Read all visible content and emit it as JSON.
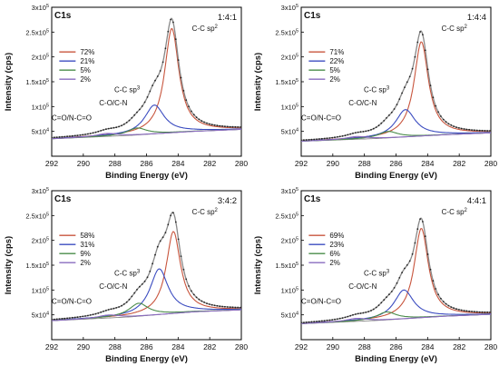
{
  "chart_data": [
    {
      "type": "line",
      "title": "C1s",
      "ratio": "1:4:1",
      "xlabel": "Binding Energy (eV)",
      "ylabel": "Intensity (cps)",
      "xlim": [
        292,
        280
      ],
      "ylim": [
        0,
        300000
      ],
      "x_ticks": [
        292,
        290,
        288,
        286,
        284,
        282,
        280
      ],
      "y_ticks": [
        {
          "value": 50000,
          "mant": "5x10",
          "exp": "4"
        },
        {
          "value": 100000,
          "mant": "1x10",
          "exp": "5"
        },
        {
          "value": 150000,
          "mant": "1.5x10",
          "exp": "5"
        },
        {
          "value": 200000,
          "mant": "2x10",
          "exp": "5"
        },
        {
          "value": 250000,
          "mant": "2.5x10",
          "exp": "5"
        },
        {
          "value": 300000,
          "mant": "3x10",
          "exp": "5"
        }
      ],
      "legend": [
        "72%",
        "21%",
        "5%",
        "2%"
      ],
      "background": [
        {
          "x": 292,
          "y": 35000
        },
        {
          "x": 287,
          "y": 42000
        },
        {
          "x": 283,
          "y": 50000
        },
        {
          "x": 280,
          "y": 54000
        }
      ],
      "series": [
        {
          "label": "C-C sp2",
          "color": "#c8553d",
          "center": 284.4,
          "height": 210000,
          "width": 0.55
        },
        {
          "label": "C-C sp3",
          "color": "#3b4cc0",
          "center": 285.5,
          "height": 58000,
          "width": 0.75
        },
        {
          "label": "C-O/C-N",
          "color": "#4a8c4a",
          "center": 286.6,
          "height": 14000,
          "width": 0.75
        },
        {
          "label": "C=O/N-C=O",
          "color": "#8a6bbf",
          "center": 288.5,
          "height": 6000,
          "width": 0.8
        }
      ]
    },
    {
      "type": "line",
      "title": "C1s",
      "ratio": "1:4:4",
      "xlabel": "Binding Energy (eV)",
      "ylabel": "Intensity (cps)",
      "xlim": [
        292,
        280
      ],
      "ylim": [
        0,
        300000
      ],
      "x_ticks": [
        292,
        290,
        288,
        286,
        284,
        282,
        280
      ],
      "y_ticks": [
        {
          "value": 50000,
          "mant": "5x10",
          "exp": "4"
        },
        {
          "value": 100000,
          "mant": "1x10",
          "exp": "5"
        },
        {
          "value": 150000,
          "mant": "1.5x10",
          "exp": "5"
        },
        {
          "value": 200000,
          "mant": "2x10",
          "exp": "5"
        },
        {
          "value": 250000,
          "mant": "2.5x10",
          "exp": "5"
        },
        {
          "value": 300000,
          "mant": "3x10",
          "exp": "5"
        }
      ],
      "legend": [
        "71%",
        "22%",
        "5%",
        "2%"
      ],
      "background": [
        {
          "x": 292,
          "y": 30000
        },
        {
          "x": 287,
          "y": 36000
        },
        {
          "x": 283,
          "y": 43000
        },
        {
          "x": 280,
          "y": 47000
        }
      ],
      "series": [
        {
          "label": "C-C sp2",
          "color": "#c8553d",
          "center": 284.4,
          "height": 190000,
          "width": 0.55
        },
        {
          "label": "C-C sp3",
          "color": "#3b4cc0",
          "center": 285.4,
          "height": 55000,
          "width": 0.75
        },
        {
          "label": "C-O/C-N",
          "color": "#4a8c4a",
          "center": 286.5,
          "height": 13000,
          "width": 0.75
        },
        {
          "label": "C=O/N-C=O",
          "color": "#8a6bbf",
          "center": 288.5,
          "height": 5500,
          "width": 0.8
        }
      ]
    },
    {
      "type": "line",
      "title": "C1s",
      "ratio": "3:4:2",
      "xlabel": "Binding Energy (eV)",
      "ylabel": "Intensity (cps)",
      "xlim": [
        292,
        280
      ],
      "ylim": [
        0,
        300000
      ],
      "x_ticks": [
        292,
        290,
        288,
        286,
        284,
        282,
        280
      ],
      "y_ticks": [
        {
          "value": 50000,
          "mant": "5x10",
          "exp": "4"
        },
        {
          "value": 100000,
          "mant": "1x10",
          "exp": "5"
        },
        {
          "value": 150000,
          "mant": "1.5x10",
          "exp": "5"
        },
        {
          "value": 200000,
          "mant": "2x10",
          "exp": "5"
        },
        {
          "value": 250000,
          "mant": "2.5x10",
          "exp": "5"
        },
        {
          "value": 300000,
          "mant": "3x10",
          "exp": "5"
        }
      ],
      "legend": [
        "58%",
        "31%",
        "9%",
        "2%"
      ],
      "background": [
        {
          "x": 292,
          "y": 38000
        },
        {
          "x": 287,
          "y": 46000
        },
        {
          "x": 283,
          "y": 56000
        },
        {
          "x": 280,
          "y": 60000
        }
      ],
      "series": [
        {
          "label": "C-C sp2",
          "color": "#c8553d",
          "center": 284.3,
          "height": 165000,
          "width": 0.55
        },
        {
          "label": "C-C sp3",
          "color": "#3b4cc0",
          "center": 285.2,
          "height": 92000,
          "width": 0.7
        },
        {
          "label": "C-O/C-N",
          "color": "#4a8c4a",
          "center": 286.5,
          "height": 26000,
          "width": 0.75
        },
        {
          "label": "C=O/N-C=O",
          "color": "#8a6bbf",
          "center": 288.4,
          "height": 6000,
          "width": 0.8
        }
      ]
    },
    {
      "type": "line",
      "title": "C1s",
      "ratio": "4:4:1",
      "xlabel": "Binding Energy (eV)",
      "ylabel": "Intensity (cps)",
      "xlim": [
        292,
        280
      ],
      "ylim": [
        0,
        300000
      ],
      "x_ticks": [
        292,
        290,
        288,
        286,
        284,
        282,
        280
      ],
      "y_ticks": [
        {
          "value": 50000,
          "mant": "5x10",
          "exp": "4"
        },
        {
          "value": 100000,
          "mant": "1x10",
          "exp": "5"
        },
        {
          "value": 150000,
          "mant": "1.5x10",
          "exp": "5"
        },
        {
          "value": 200000,
          "mant": "2x10",
          "exp": "5"
        },
        {
          "value": 250000,
          "mant": "2.5x10",
          "exp": "5"
        },
        {
          "value": 300000,
          "mant": "3x10",
          "exp": "5"
        }
      ],
      "legend": [
        "69%",
        "23%",
        "6%",
        "2%"
      ],
      "background": [
        {
          "x": 292,
          "y": 32000
        },
        {
          "x": 287,
          "y": 39000
        },
        {
          "x": 283,
          "y": 47000
        },
        {
          "x": 280,
          "y": 51000
        }
      ],
      "series": [
        {
          "label": "C-C sp2",
          "color": "#c8553d",
          "center": 284.4,
          "height": 180000,
          "width": 0.55
        },
        {
          "label": "C-C sp3",
          "color": "#3b4cc0",
          "center": 285.5,
          "height": 58000,
          "width": 0.75
        },
        {
          "label": "C-O/C-N",
          "color": "#4a8c4a",
          "center": 286.6,
          "height": 16000,
          "width": 0.75
        },
        {
          "label": "C=O/N-C=O",
          "color": "#8a6bbf",
          "center": 288.5,
          "height": 6000,
          "width": 0.8
        }
      ]
    }
  ]
}
